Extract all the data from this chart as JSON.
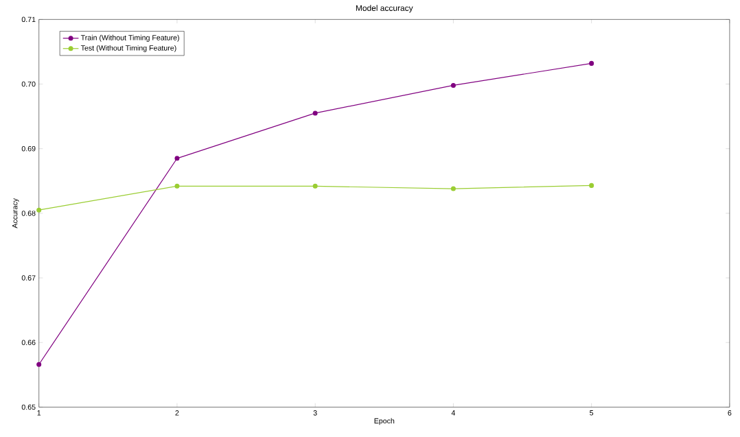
{
  "chart_data": {
    "type": "line",
    "title": "Model accuracy",
    "xlabel": "Epoch",
    "ylabel": "Accuracy",
    "x": [
      1,
      2,
      3,
      4,
      5
    ],
    "series": [
      {
        "name": "Train (Without Timing Feature)",
        "color": "#800080",
        "values": [
          0.6566,
          0.6885,
          0.6955,
          0.6998,
          0.7032
        ]
      },
      {
        "name": "Test (Without Timing Feature)",
        "color": "#9acd32",
        "values": [
          0.6805,
          0.6842,
          0.6842,
          0.6838,
          0.6843
        ]
      }
    ],
    "xlim": [
      1,
      6
    ],
    "xticks": [
      1,
      2,
      3,
      4,
      5,
      6
    ],
    "ylim": [
      0.65,
      0.71
    ],
    "yticks": [
      0.65,
      0.66,
      0.67,
      0.68,
      0.69,
      {
        "value": 0.7,
        "label": "0.70"
      },
      0.71
    ],
    "marker": "circle",
    "legend": "top left",
    "grid": false
  }
}
